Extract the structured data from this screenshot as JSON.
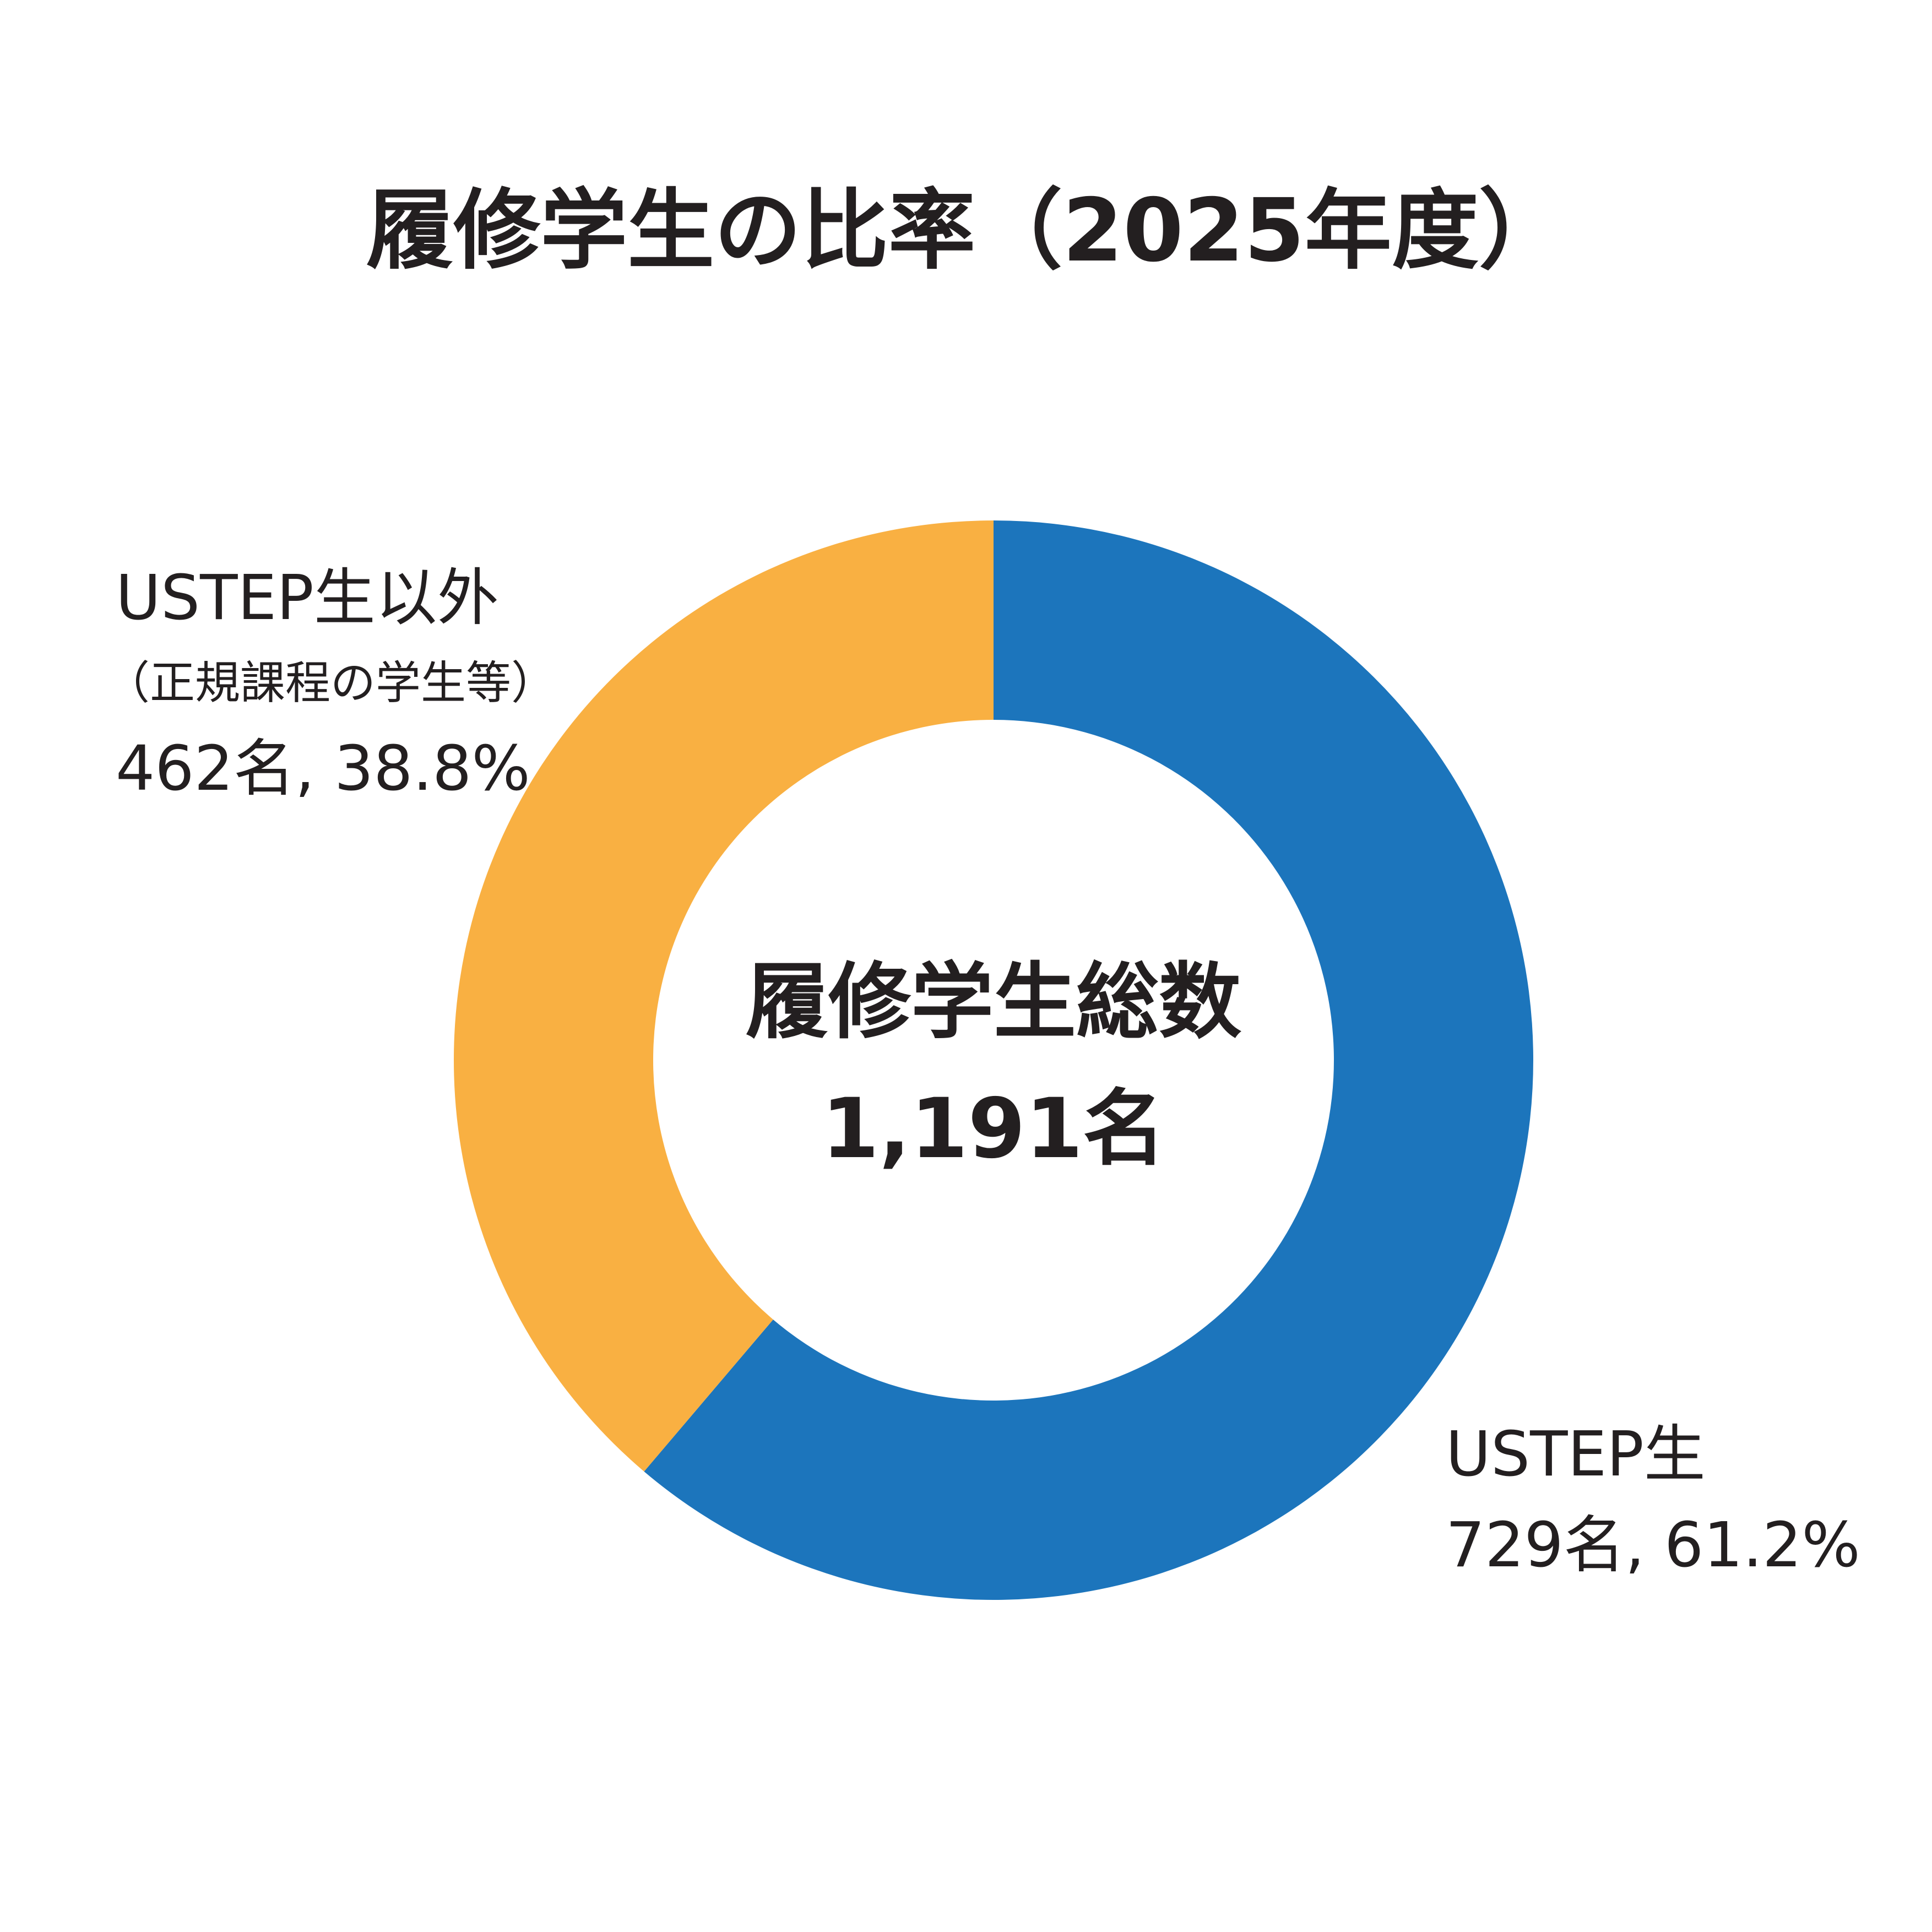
{
  "chart_data": {
    "type": "pie",
    "title": "履修学生の比率（2025年度）",
    "center_label": "履修学生総数",
    "center_value": "1,191名",
    "total": 1191,
    "series": [
      {
        "name": "USTEP生",
        "value": 729,
        "percent": 61.2,
        "color": "#1c75bc",
        "value_text": "729名, 61.2%"
      },
      {
        "name": "USTEP生以外",
        "subtitle": "（正規課程の学生等）",
        "value": 462,
        "percent": 38.8,
        "color": "#f9b042",
        "value_text": "462名, 38.8%"
      }
    ],
    "start_position": "top",
    "direction": "clockwise"
  }
}
